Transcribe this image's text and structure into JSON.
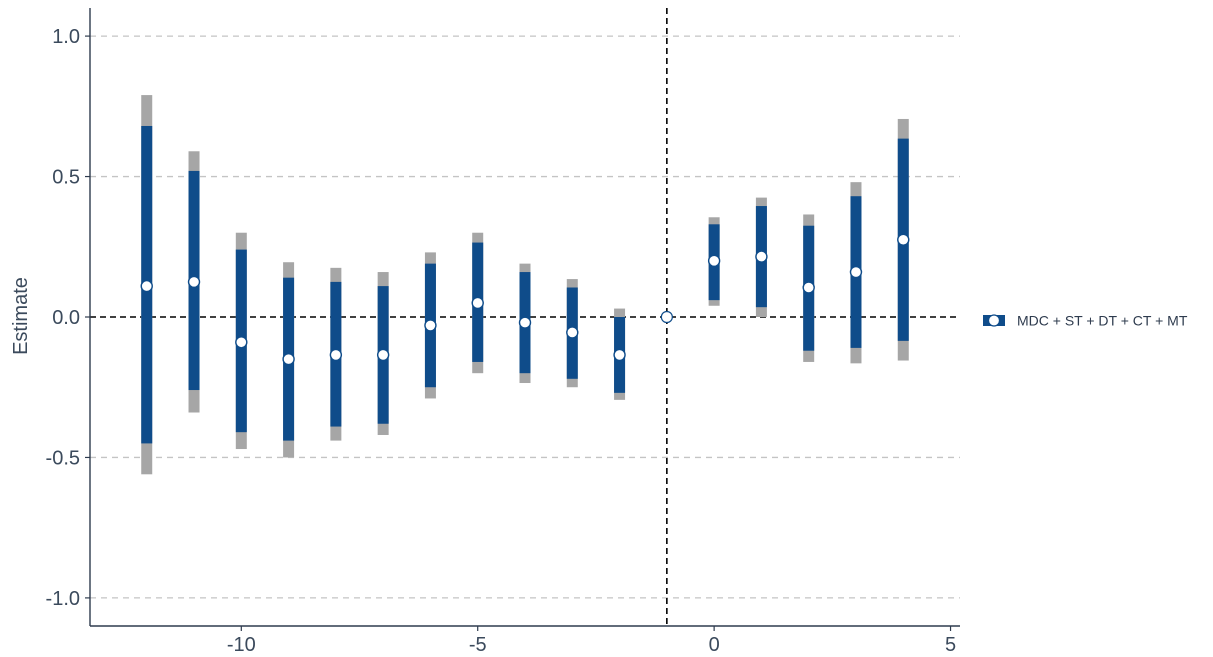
{
  "chart_data": {
    "type": "scatter",
    "title": "",
    "xlabel": "",
    "ylabel": "Estimate",
    "xlim": [
      -13.2,
      5.2
    ],
    "ylim": [
      -1.1,
      1.1
    ],
    "x_ticks": [
      -10,
      -5,
      0,
      5
    ],
    "x_tick_labels": [
      "-10",
      "-5",
      "0",
      "5"
    ],
    "y_ticks": [
      -1.0,
      -0.5,
      0.0,
      0.5,
      1.0
    ],
    "y_tick_labels": [
      "-1.0",
      "-0.5",
      "0.0",
      "0.5",
      "1.0"
    ],
    "grid": "horizontal dashed",
    "reference_lines": {
      "x": -1,
      "y": 0
    },
    "legend": {
      "position": "right",
      "label": "MDC + ST + DT + CT + MT"
    },
    "colors": {
      "inner_interval": "#0f4c8a",
      "outer_interval": "#a6a6a6",
      "point_fill": "#ffffff",
      "axis": "#2e3b4e",
      "grid": "#c4c4c4",
      "reference": "#000000"
    },
    "series": [
      {
        "name": "MDC + ST + DT + CT + MT",
        "points": [
          {
            "x": -12,
            "estimate": 0.11,
            "ci_low": -0.45,
            "ci_high": 0.68,
            "outer_low": -0.56,
            "outer_high": 0.79
          },
          {
            "x": -11,
            "estimate": 0.125,
            "ci_low": -0.26,
            "ci_high": 0.52,
            "outer_low": -0.34,
            "outer_high": 0.59
          },
          {
            "x": -10,
            "estimate": -0.09,
            "ci_low": -0.41,
            "ci_high": 0.24,
            "outer_low": -0.47,
            "outer_high": 0.3
          },
          {
            "x": -9,
            "estimate": -0.15,
            "ci_low": -0.44,
            "ci_high": 0.14,
            "outer_low": -0.5,
            "outer_high": 0.195
          },
          {
            "x": -8,
            "estimate": -0.135,
            "ci_low": -0.39,
            "ci_high": 0.125,
            "outer_low": -0.44,
            "outer_high": 0.175
          },
          {
            "x": -7,
            "estimate": -0.135,
            "ci_low": -0.38,
            "ci_high": 0.11,
            "outer_low": -0.42,
            "outer_high": 0.16
          },
          {
            "x": -6,
            "estimate": -0.03,
            "ci_low": -0.25,
            "ci_high": 0.19,
            "outer_low": -0.29,
            "outer_high": 0.23
          },
          {
            "x": -5,
            "estimate": 0.05,
            "ci_low": -0.16,
            "ci_high": 0.265,
            "outer_low": -0.2,
            "outer_high": 0.3
          },
          {
            "x": -4,
            "estimate": -0.02,
            "ci_low": -0.2,
            "ci_high": 0.16,
            "outer_low": -0.235,
            "outer_high": 0.19
          },
          {
            "x": -3,
            "estimate": -0.055,
            "ci_low": -0.22,
            "ci_high": 0.105,
            "outer_low": -0.25,
            "outer_high": 0.135
          },
          {
            "x": -2,
            "estimate": -0.135,
            "ci_low": -0.27,
            "ci_high": 0.0,
            "outer_low": -0.295,
            "outer_high": 0.03
          },
          {
            "x": -1,
            "estimate": 0.0,
            "reference": true
          },
          {
            "x": 0,
            "estimate": 0.2,
            "ci_low": 0.06,
            "ci_high": 0.33,
            "outer_low": 0.04,
            "outer_high": 0.355
          },
          {
            "x": 1,
            "estimate": 0.215,
            "ci_low": 0.035,
            "ci_high": 0.395,
            "outer_low": 0.0,
            "outer_high": 0.425
          },
          {
            "x": 2,
            "estimate": 0.105,
            "ci_low": -0.12,
            "ci_high": 0.325,
            "outer_low": -0.16,
            "outer_high": 0.365
          },
          {
            "x": 3,
            "estimate": 0.16,
            "ci_low": -0.11,
            "ci_high": 0.43,
            "outer_low": -0.165,
            "outer_high": 0.48
          },
          {
            "x": 4,
            "estimate": 0.275,
            "ci_low": -0.085,
            "ci_high": 0.635,
            "outer_low": -0.155,
            "outer_high": 0.705
          }
        ]
      }
    ]
  }
}
